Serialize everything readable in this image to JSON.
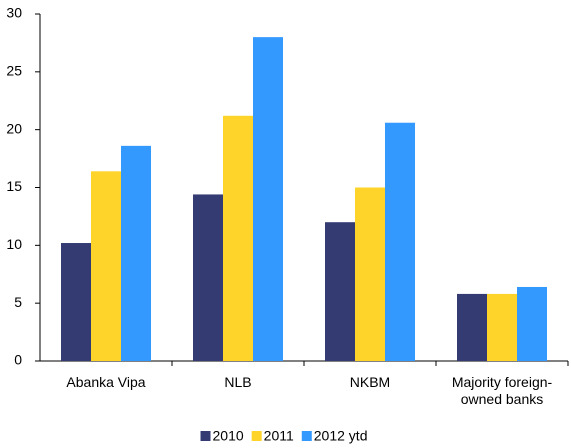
{
  "chart_data": {
    "type": "bar",
    "categories": [
      "Abanka Vipa",
      "NLB",
      "NKBM",
      "Majority foreign-owned banks"
    ],
    "series": [
      {
        "name": "2010",
        "color": "#333b72",
        "values": [
          10.2,
          14.4,
          12.0,
          5.8
        ]
      },
      {
        "name": "2011",
        "color": "#ffd42a",
        "values": [
          16.4,
          21.2,
          15.0,
          5.8
        ]
      },
      {
        "name": "2012 ytd",
        "color": "#3399ff",
        "values": [
          18.6,
          28.0,
          20.6,
          6.4
        ]
      }
    ],
    "ylim": [
      0,
      30
    ],
    "yticks": [
      0,
      5,
      10,
      15,
      20,
      25,
      30
    ],
    "grid": false,
    "legend": "bottom"
  }
}
